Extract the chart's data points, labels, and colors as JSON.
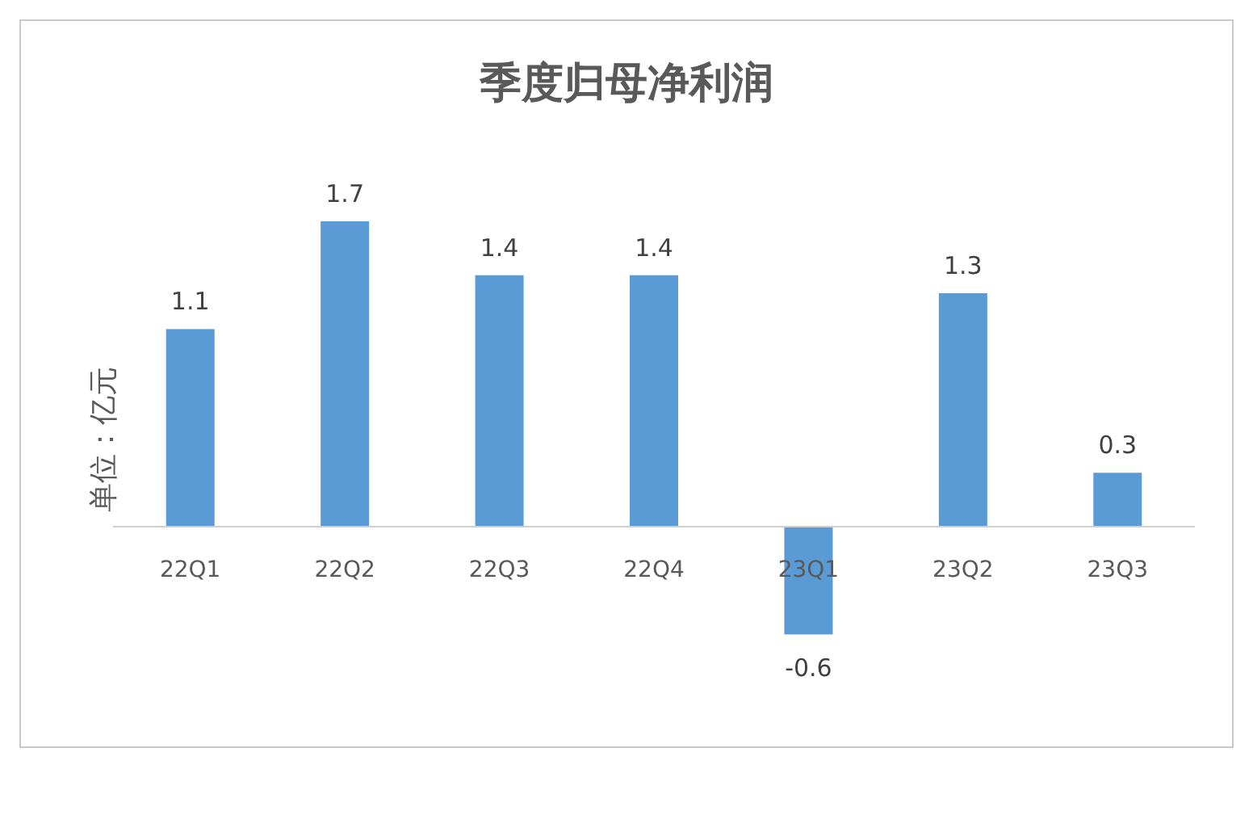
{
  "chart_data": {
    "type": "bar",
    "title": "季度归母净利润",
    "ylabel": "单位：亿元",
    "categories": [
      "22Q1",
      "22Q2",
      "22Q3",
      "22Q4",
      "23Q1",
      "23Q2",
      "23Q3"
    ],
    "values": [
      1.1,
      1.7,
      1.4,
      1.4,
      -0.6,
      1.3,
      0.3
    ],
    "color": "#5b9bd5",
    "data_labels": true
  }
}
